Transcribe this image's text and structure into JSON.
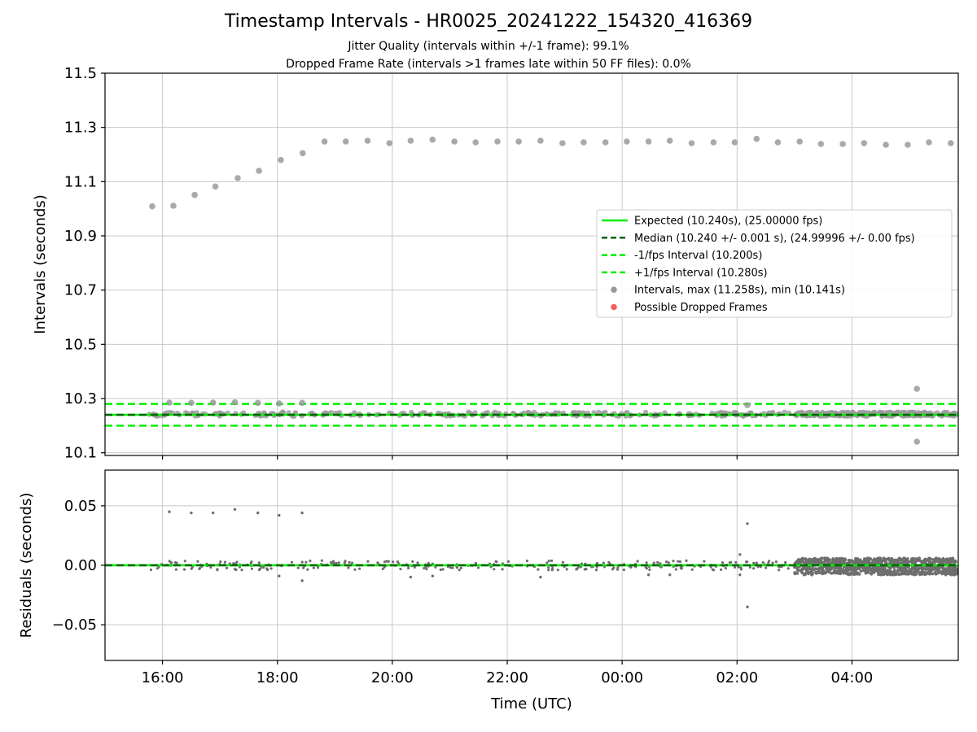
{
  "header": {
    "title": "Timestamp Intervals - HR0025_20241222_154320_416369",
    "subtitle_jitter": "Jitter Quality (intervals within +/-1 frame): 99.1%",
    "subtitle_dropped": "Dropped Frame Rate (intervals >1 frames late within 50 FF files): 0.0%"
  },
  "colors": {
    "expected": "#00ee00",
    "median": "#006400",
    "interval_bounds": "#00ee00",
    "intervals": "#9a9a9a",
    "dropped": "#f06060",
    "residuals": "#6e6e6e",
    "grid": "#c8c8c8"
  },
  "chart_data": [
    {
      "type": "scatter",
      "ylabel": "Intervals (seconds)",
      "xlabel": "",
      "x_unit": "hours since 00:00 UTC on first day (tick labels HH:MM)",
      "xlim": [
        15.0,
        29.85
      ],
      "ylim": [
        10.09,
        11.5
      ],
      "yticks": [
        "10.1",
        "10.3",
        "10.5",
        "10.7",
        "10.9",
        "11.1",
        "11.3",
        "11.5"
      ],
      "xticks": [
        "16:00",
        "18:00",
        "20:00",
        "22:00",
        "00:00",
        "02:00",
        "04:00"
      ],
      "grid": true,
      "legend_position": "center-right",
      "reference_lines": [
        {
          "name": "Expected (10.240s), (25.00000 fps)",
          "y": 10.24,
          "style": "solid"
        },
        {
          "name": "Median (10.240 +/- 0.001 s), (24.99996 +/- 0.00 fps)",
          "y": 10.24,
          "style": "dashed-dark"
        },
        {
          "name": "-1/fps Interval (10.200s)",
          "y": 10.2,
          "style": "dashed"
        },
        {
          "name": "+1/fps Interval (10.280s)",
          "y": 10.28,
          "style": "dashed"
        }
      ],
      "series": [
        {
          "name": "Intervals, max (11.258s), min (10.141s)",
          "x": [
            15.82,
            16.19,
            16.56,
            16.92,
            17.31,
            17.68,
            18.06,
            18.44,
            18.82,
            19.19,
            19.57,
            19.95,
            20.32,
            20.7,
            21.08,
            21.45,
            21.83,
            22.2,
            22.58,
            22.96,
            23.33,
            23.71,
            24.08,
            24.46,
            24.83,
            25.21,
            25.59,
            25.96,
            26.34,
            26.71,
            27.09,
            27.46,
            27.84,
            28.21,
            28.59,
            28.97,
            29.34,
            29.72,
            16.12,
            16.5,
            16.88,
            17.26,
            17.66,
            18.03,
            18.43,
            26.18,
            29.13,
            29.13
          ],
          "y": [
            11.009,
            11.011,
            11.051,
            11.082,
            11.113,
            11.14,
            11.18,
            11.205,
            11.248,
            11.248,
            11.251,
            11.242,
            11.251,
            11.255,
            11.248,
            11.245,
            11.248,
            11.248,
            11.251,
            11.242,
            11.245,
            11.245,
            11.248,
            11.248,
            11.251,
            11.242,
            11.245,
            11.245,
            11.258,
            11.245,
            11.248,
            11.239,
            11.239,
            11.242,
            11.236,
            11.236,
            11.245,
            11.242,
            10.285,
            10.284,
            10.285,
            10.286,
            10.284,
            10.282,
            10.284,
            10.276,
            10.336,
            10.141
          ]
        },
        {
          "name": "Possible Dropped Frames",
          "x": [],
          "y": []
        }
      ]
    },
    {
      "type": "scatter",
      "ylabel": "Residuals (seconds)",
      "xlabel": "Time (UTC)",
      "xlim": [
        15.0,
        29.85
      ],
      "ylim": [
        -0.08,
        0.08
      ],
      "yticks": [
        "−0.05",
        "0.00",
        "0.05"
      ],
      "xticks": [
        "16:00",
        "18:00",
        "20:00",
        "22:00",
        "00:00",
        "02:00",
        "04:00"
      ],
      "grid": true,
      "reference_lines": [
        {
          "y": 0.0,
          "style": "solid"
        },
        {
          "y": 0.0,
          "style": "dashed-dark"
        }
      ],
      "series": [
        {
          "name": "",
          "outlier_points": [
            [
              16.12,
              0.045
            ],
            [
              16.5,
              0.044
            ],
            [
              16.88,
              0.044
            ],
            [
              17.26,
              0.047
            ],
            [
              17.66,
              0.044
            ],
            [
              18.03,
              0.042
            ],
            [
              18.43,
              0.044
            ],
            [
              26.18,
              0.035
            ],
            [
              26.18,
              -0.035
            ],
            [
              18.03,
              -0.009
            ],
            [
              18.43,
              -0.013
            ],
            [
              20.32,
              -0.01
            ],
            [
              20.7,
              -0.009
            ],
            [
              22.58,
              -0.01
            ],
            [
              24.46,
              -0.008
            ],
            [
              24.83,
              -0.008
            ],
            [
              26.05,
              0.009
            ],
            [
              26.05,
              -0.008
            ]
          ],
          "dense_band": {
            "x_range": [
              27.0,
              29.85
            ],
            "y_range": [
              -0.008,
              0.006
            ]
          },
          "sparse_band": {
            "x_range": [
              15.75,
              26.9
            ],
            "y_range": [
              -0.007,
              0.011
            ]
          }
        }
      ]
    }
  ]
}
